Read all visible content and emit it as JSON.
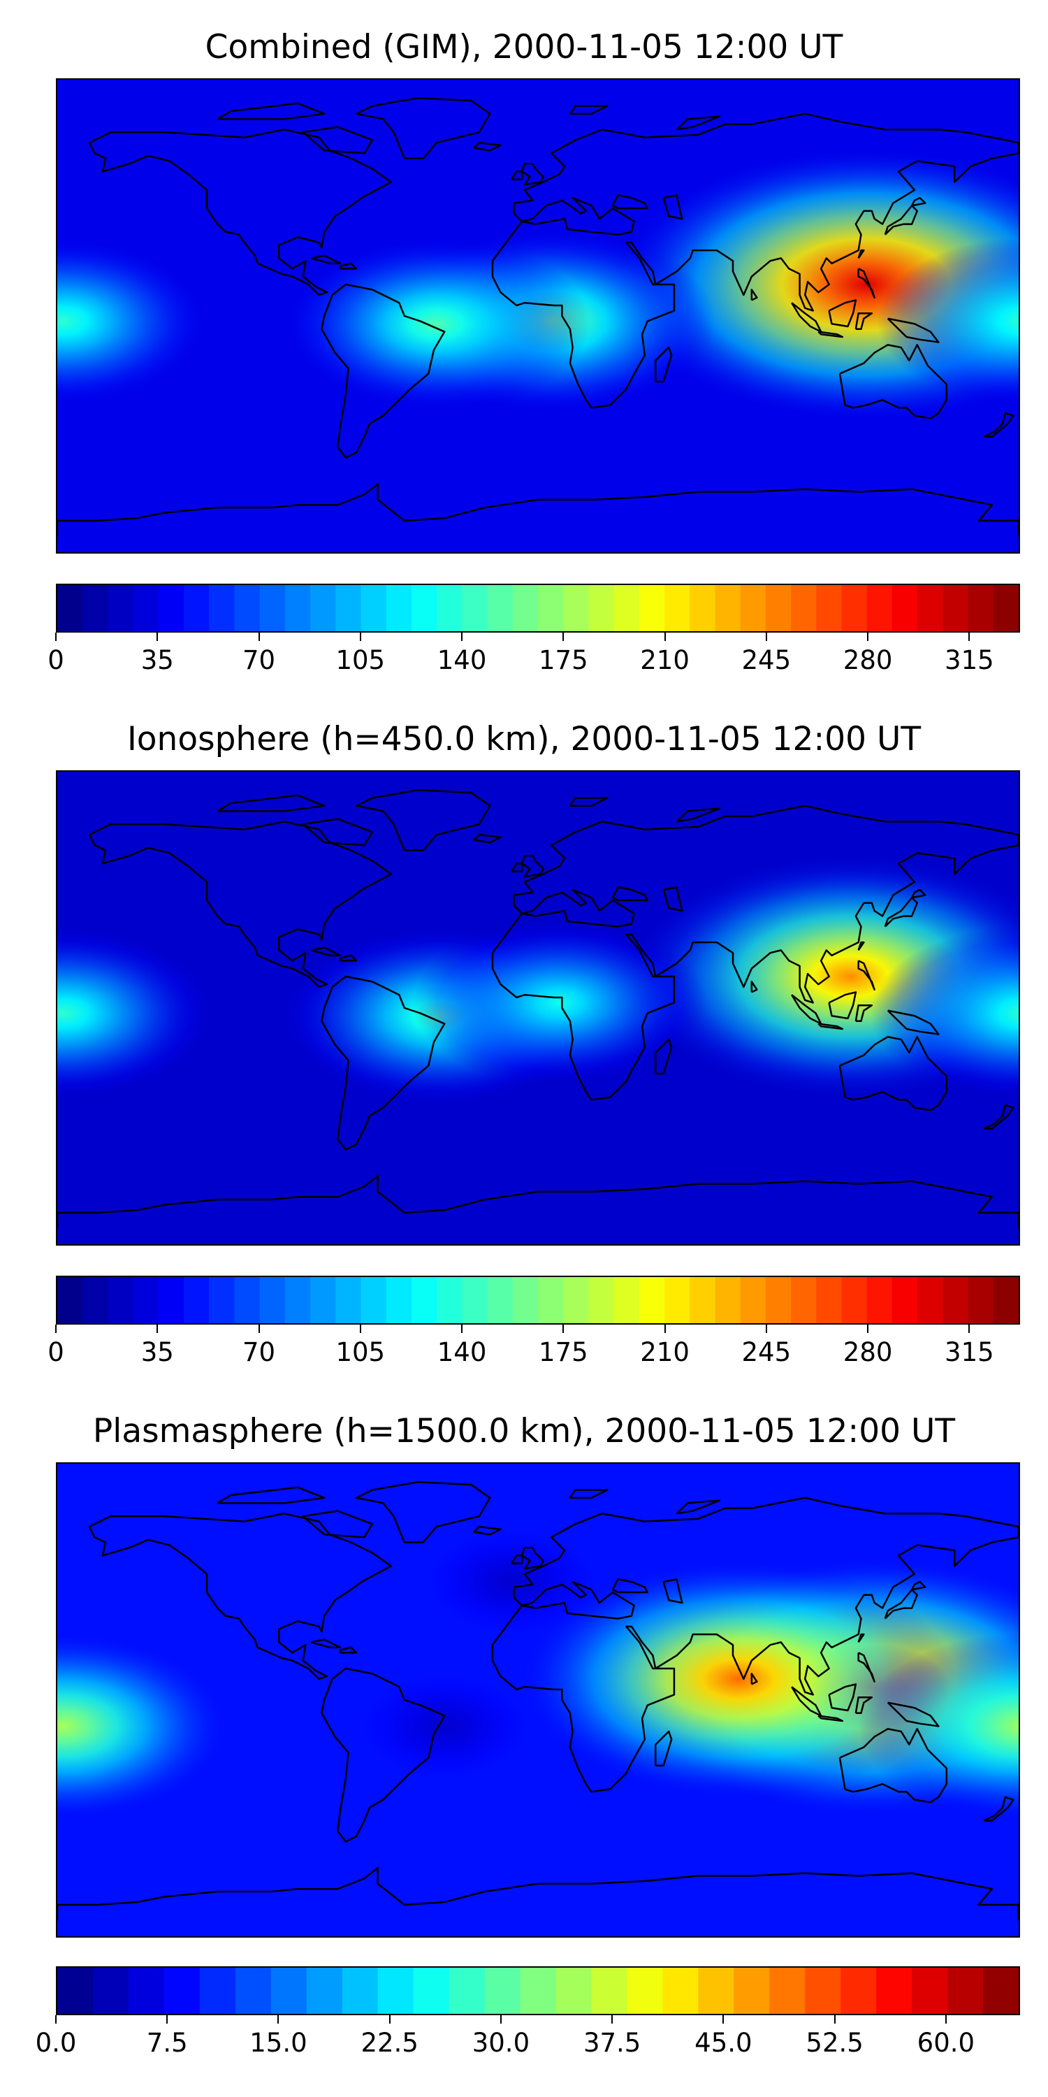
{
  "chart_data": [
    {
      "type": "heatmap",
      "title": "Combined (GIM), 2000-11-05 12:00 UT",
      "colormap": "jet",
      "colorbar": {
        "min": 0,
        "max": 332.5,
        "levels": 38,
        "ticks": [
          0,
          35,
          70,
          105,
          140,
          175,
          210,
          245,
          280,
          315
        ],
        "tick_labels": [
          "0",
          "35",
          "70",
          "105",
          "140",
          "175",
          "210",
          "245",
          "280",
          "315"
        ]
      },
      "background": 35,
      "features": [
        {
          "lon": 123,
          "lat": 12,
          "value": 300
        },
        {
          "lon": 5,
          "lat": -2,
          "value": 165
        },
        {
          "lon": -38,
          "lat": -3,
          "value": 150
        },
        {
          "lon": -178,
          "lat": -2,
          "value": 140
        }
      ]
    },
    {
      "type": "heatmap",
      "title": "Ionosphere  (h=450.0 km), 2000-11-05 12:00 UT",
      "colormap": "jet",
      "colorbar": {
        "min": 0,
        "max": 332.5,
        "levels": 38,
        "ticks": [
          0,
          35,
          70,
          105,
          140,
          175,
          210,
          245,
          280,
          315
        ],
        "tick_labels": [
          "0",
          "35",
          "70",
          "105",
          "140",
          "175",
          "210",
          "245",
          "280",
          "315"
        ]
      },
      "background": 25,
      "features": [
        {
          "lon": 117,
          "lat": 12,
          "value": 245
        },
        {
          "lon": -37,
          "lat": -3,
          "value": 150
        },
        {
          "lon": 8,
          "lat": 2,
          "value": 130
        },
        {
          "lon": -178,
          "lat": -2,
          "value": 140
        }
      ]
    },
    {
      "type": "heatmap",
      "title": "Plasmasphere (h=1500.0 km), 2000-11-05 12:00 UT",
      "colormap": "jet",
      "colorbar": {
        "min": 0,
        "max": 65,
        "levels": 27,
        "ticks": [
          0,
          7.5,
          15,
          22.5,
          30,
          37.5,
          45,
          52.5,
          60
        ],
        "tick_labels": [
          "0.0",
          "7.5",
          "15.0",
          "22.5",
          "30.0",
          "37.5",
          "45.0",
          "52.5",
          "60.0"
        ]
      },
      "background": 9,
      "features": [
        {
          "lon": 125,
          "lat": 5,
          "value": 56
        },
        {
          "lon": 75,
          "lat": 8,
          "value": 50
        },
        {
          "lon": -178,
          "lat": -10,
          "value": 35
        },
        {
          "lon": -35,
          "lat": -10,
          "value": 5
        },
        {
          "lon": -10,
          "lat": 45,
          "value": 5
        }
      ]
    }
  ]
}
